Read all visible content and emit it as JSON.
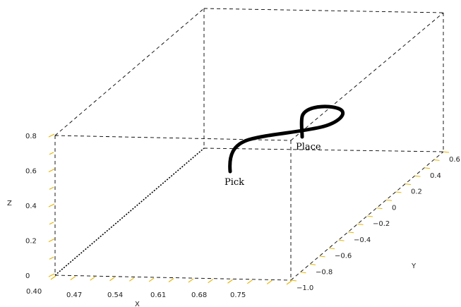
{
  "chart_data": {
    "type": "line",
    "projection": "3d",
    "xlabel": "X",
    "ylabel": "Y",
    "zlabel": "Z",
    "x_ticks": [
      "0.40",
      "0.47",
      "0.54",
      "0.61",
      "0.68",
      "0.75"
    ],
    "y_ticks": [
      "−1.0",
      "−0.8",
      "−0.6",
      "−0.4",
      "−0.2",
      "0",
      "0.2",
      "0.4",
      "0.6"
    ],
    "z_ticks": [
      "0",
      "0.2",
      "0.4",
      "0.6",
      "0.8"
    ],
    "xlim": [
      0.4,
      0.8
    ],
    "ylim": [
      -1.0,
      0.6
    ],
    "zlim": [
      0,
      0.8
    ],
    "grid": false,
    "annotations": [
      {
        "text": "Pick",
        "at": "trajectory start"
      },
      {
        "text": "Place",
        "at": "trajectory end"
      }
    ]
  }
}
